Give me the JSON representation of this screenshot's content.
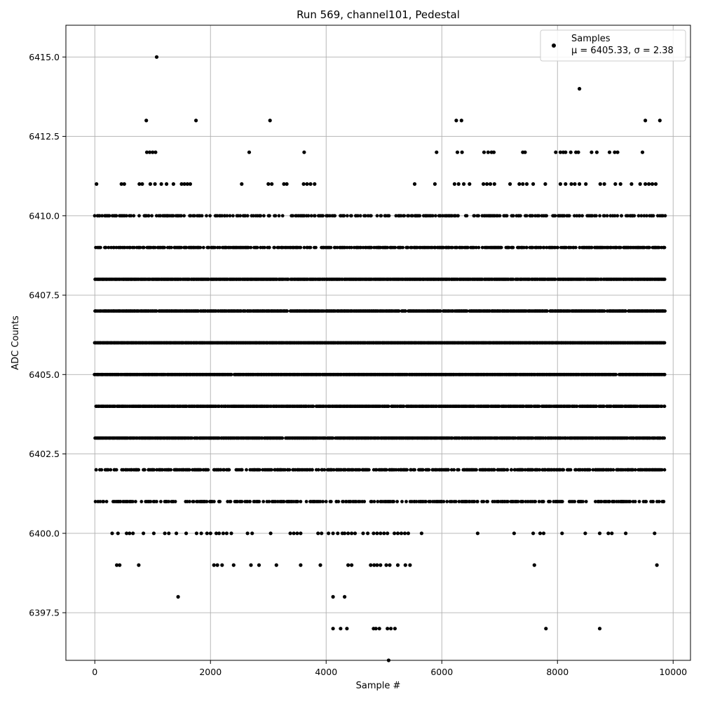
{
  "chart_data": {
    "type": "scatter",
    "title": "Run 569, channel101, Pedestal",
    "xlabel": "Sample #",
    "ylabel": "ADC Counts",
    "xlim": [
      -500,
      10300
    ],
    "ylim": [
      6396.0,
      6416.0
    ],
    "x_ticks": [
      0,
      2000,
      4000,
      6000,
      8000,
      10000
    ],
    "y_ticks": [
      6397.5,
      6400.0,
      6402.5,
      6405.0,
      6407.5,
      6410.0,
      6412.5,
      6415.0
    ],
    "x_tick_labels": [
      "0",
      "2000",
      "4000",
      "6000",
      "8000",
      "10000"
    ],
    "y_tick_labels": [
      "6397.5",
      "6400.0",
      "6402.5",
      "6405.0",
      "6407.5",
      "6410.0",
      "6412.5",
      "6415.0"
    ],
    "grid": true,
    "legend_position": "top-right",
    "marker_color": "#000000",
    "series": [
      {
        "name": "Samples",
        "stats_label": "μ = 6405.33, σ = 2.38",
        "n_samples": 9860,
        "band_levels": [
          6401,
          6402,
          6403,
          6404,
          6405,
          6406,
          6407,
          6408,
          6409,
          6410
        ],
        "sparse_points": [
          {
            "x": 1070,
            "y": 6415
          },
          {
            "x": 8380,
            "y": 6414
          },
          {
            "x": 890,
            "y": 6413
          },
          {
            "x": 1750,
            "y": 6413
          },
          {
            "x": 3030,
            "y": 6413
          },
          {
            "x": 6250,
            "y": 6413
          },
          {
            "x": 6340,
            "y": 6413
          },
          {
            "x": 9520,
            "y": 6413
          },
          {
            "x": 9770,
            "y": 6413
          },
          {
            "x": 900,
            "y": 6412
          },
          {
            "x": 950,
            "y": 6412
          },
          {
            "x": 1000,
            "y": 6412
          },
          {
            "x": 1050,
            "y": 6412
          },
          {
            "x": 2670,
            "y": 6412
          },
          {
            "x": 3620,
            "y": 6412
          },
          {
            "x": 5910,
            "y": 6412
          },
          {
            "x": 6270,
            "y": 6412
          },
          {
            "x": 6350,
            "y": 6412
          },
          {
            "x": 6730,
            "y": 6412
          },
          {
            "x": 6800,
            "y": 6412
          },
          {
            "x": 6860,
            "y": 6412
          },
          {
            "x": 6900,
            "y": 6412
          },
          {
            "x": 7400,
            "y": 6412
          },
          {
            "x": 7440,
            "y": 6412
          },
          {
            "x": 7970,
            "y": 6412
          },
          {
            "x": 8050,
            "y": 6412
          },
          {
            "x": 8100,
            "y": 6412
          },
          {
            "x": 8140,
            "y": 6412
          },
          {
            "x": 8230,
            "y": 6412
          },
          {
            "x": 8320,
            "y": 6412
          },
          {
            "x": 8360,
            "y": 6412
          },
          {
            "x": 8590,
            "y": 6412
          },
          {
            "x": 8680,
            "y": 6412
          },
          {
            "x": 8900,
            "y": 6412
          },
          {
            "x": 8990,
            "y": 6412
          },
          {
            "x": 9040,
            "y": 6412
          },
          {
            "x": 9470,
            "y": 6412
          },
          {
            "x": 30,
            "y": 6411
          },
          {
            "x": 460,
            "y": 6411
          },
          {
            "x": 510,
            "y": 6411
          },
          {
            "x": 770,
            "y": 6411
          },
          {
            "x": 820,
            "y": 6411
          },
          {
            "x": 960,
            "y": 6411
          },
          {
            "x": 1040,
            "y": 6411
          },
          {
            "x": 1150,
            "y": 6411
          },
          {
            "x": 1240,
            "y": 6411
          },
          {
            "x": 1360,
            "y": 6411
          },
          {
            "x": 1500,
            "y": 6411
          },
          {
            "x": 1550,
            "y": 6411
          },
          {
            "x": 1600,
            "y": 6411
          },
          {
            "x": 1650,
            "y": 6411
          },
          {
            "x": 2540,
            "y": 6411
          },
          {
            "x": 3000,
            "y": 6411
          },
          {
            "x": 3060,
            "y": 6411
          },
          {
            "x": 3270,
            "y": 6411
          },
          {
            "x": 3320,
            "y": 6411
          },
          {
            "x": 3610,
            "y": 6411
          },
          {
            "x": 3670,
            "y": 6411
          },
          {
            "x": 3730,
            "y": 6411
          },
          {
            "x": 3800,
            "y": 6411
          },
          {
            "x": 5530,
            "y": 6411
          },
          {
            "x": 5880,
            "y": 6411
          },
          {
            "x": 6220,
            "y": 6411
          },
          {
            "x": 6290,
            "y": 6411
          },
          {
            "x": 6380,
            "y": 6411
          },
          {
            "x": 6480,
            "y": 6411
          },
          {
            "x": 6720,
            "y": 6411
          },
          {
            "x": 6780,
            "y": 6411
          },
          {
            "x": 6840,
            "y": 6411
          },
          {
            "x": 6910,
            "y": 6411
          },
          {
            "x": 7180,
            "y": 6411
          },
          {
            "x": 7340,
            "y": 6411
          },
          {
            "x": 7400,
            "y": 6411
          },
          {
            "x": 7470,
            "y": 6411
          },
          {
            "x": 7580,
            "y": 6411
          },
          {
            "x": 7790,
            "y": 6411
          },
          {
            "x": 8050,
            "y": 6411
          },
          {
            "x": 8140,
            "y": 6411
          },
          {
            "x": 8240,
            "y": 6411
          },
          {
            "x": 8300,
            "y": 6411
          },
          {
            "x": 8380,
            "y": 6411
          },
          {
            "x": 8490,
            "y": 6411
          },
          {
            "x": 8740,
            "y": 6411
          },
          {
            "x": 8810,
            "y": 6411
          },
          {
            "x": 9000,
            "y": 6411
          },
          {
            "x": 9090,
            "y": 6411
          },
          {
            "x": 9280,
            "y": 6411
          },
          {
            "x": 9430,
            "y": 6411
          },
          {
            "x": 9520,
            "y": 6411
          },
          {
            "x": 9580,
            "y": 6411
          },
          {
            "x": 9640,
            "y": 6411
          },
          {
            "x": 9700,
            "y": 6411
          },
          {
            "x": 300,
            "y": 6400
          },
          {
            "x": 400,
            "y": 6400
          },
          {
            "x": 550,
            "y": 6400
          },
          {
            "x": 600,
            "y": 6400
          },
          {
            "x": 660,
            "y": 6400
          },
          {
            "x": 840,
            "y": 6400
          },
          {
            "x": 1020,
            "y": 6400
          },
          {
            "x": 1210,
            "y": 6400
          },
          {
            "x": 1280,
            "y": 6400
          },
          {
            "x": 1410,
            "y": 6400
          },
          {
            "x": 1580,
            "y": 6400
          },
          {
            "x": 1760,
            "y": 6400
          },
          {
            "x": 1840,
            "y": 6400
          },
          {
            "x": 1940,
            "y": 6400
          },
          {
            "x": 2000,
            "y": 6400
          },
          {
            "x": 2100,
            "y": 6400
          },
          {
            "x": 2150,
            "y": 6400
          },
          {
            "x": 2220,
            "y": 6400
          },
          {
            "x": 2280,
            "y": 6400
          },
          {
            "x": 2360,
            "y": 6400
          },
          {
            "x": 2640,
            "y": 6400
          },
          {
            "x": 2720,
            "y": 6400
          },
          {
            "x": 3040,
            "y": 6400
          },
          {
            "x": 3380,
            "y": 6400
          },
          {
            "x": 3440,
            "y": 6400
          },
          {
            "x": 3500,
            "y": 6400
          },
          {
            "x": 3560,
            "y": 6400
          },
          {
            "x": 3860,
            "y": 6400
          },
          {
            "x": 3920,
            "y": 6400
          },
          {
            "x": 4040,
            "y": 6400
          },
          {
            "x": 4120,
            "y": 6400
          },
          {
            "x": 4200,
            "y": 6400
          },
          {
            "x": 4280,
            "y": 6400
          },
          {
            "x": 4320,
            "y": 6400
          },
          {
            "x": 4380,
            "y": 6400
          },
          {
            "x": 4440,
            "y": 6400
          },
          {
            "x": 4500,
            "y": 6400
          },
          {
            "x": 4640,
            "y": 6400
          },
          {
            "x": 4720,
            "y": 6400
          },
          {
            "x": 4820,
            "y": 6400
          },
          {
            "x": 4880,
            "y": 6400
          },
          {
            "x": 4940,
            "y": 6400
          },
          {
            "x": 5000,
            "y": 6400
          },
          {
            "x": 5060,
            "y": 6400
          },
          {
            "x": 5180,
            "y": 6400
          },
          {
            "x": 5240,
            "y": 6400
          },
          {
            "x": 5300,
            "y": 6400
          },
          {
            "x": 5360,
            "y": 6400
          },
          {
            "x": 5420,
            "y": 6400
          },
          {
            "x": 5650,
            "y": 6400
          },
          {
            "x": 6620,
            "y": 6400
          },
          {
            "x": 7250,
            "y": 6400
          },
          {
            "x": 7580,
            "y": 6400
          },
          {
            "x": 7700,
            "y": 6400
          },
          {
            "x": 7760,
            "y": 6400
          },
          {
            "x": 8080,
            "y": 6400
          },
          {
            "x": 8480,
            "y": 6400
          },
          {
            "x": 8730,
            "y": 6400
          },
          {
            "x": 8880,
            "y": 6400
          },
          {
            "x": 8940,
            "y": 6400
          },
          {
            "x": 9180,
            "y": 6400
          },
          {
            "x": 9680,
            "y": 6400
          },
          {
            "x": 380,
            "y": 6399
          },
          {
            "x": 430,
            "y": 6399
          },
          {
            "x": 760,
            "y": 6399
          },
          {
            "x": 2060,
            "y": 6399
          },
          {
            "x": 2120,
            "y": 6399
          },
          {
            "x": 2200,
            "y": 6399
          },
          {
            "x": 2400,
            "y": 6399
          },
          {
            "x": 2700,
            "y": 6399
          },
          {
            "x": 2840,
            "y": 6399
          },
          {
            "x": 3140,
            "y": 6399
          },
          {
            "x": 3560,
            "y": 6399
          },
          {
            "x": 3900,
            "y": 6399
          },
          {
            "x": 4380,
            "y": 6399
          },
          {
            "x": 4440,
            "y": 6399
          },
          {
            "x": 4770,
            "y": 6399
          },
          {
            "x": 4830,
            "y": 6399
          },
          {
            "x": 4880,
            "y": 6399
          },
          {
            "x": 4940,
            "y": 6399
          },
          {
            "x": 5040,
            "y": 6399
          },
          {
            "x": 5100,
            "y": 6399
          },
          {
            "x": 5240,
            "y": 6399
          },
          {
            "x": 5370,
            "y": 6399
          },
          {
            "x": 5450,
            "y": 6399
          },
          {
            "x": 7600,
            "y": 6399
          },
          {
            "x": 9720,
            "y": 6399
          },
          {
            "x": 1440,
            "y": 6398
          },
          {
            "x": 4120,
            "y": 6398
          },
          {
            "x": 4320,
            "y": 6398
          },
          {
            "x": 4120,
            "y": 6397
          },
          {
            "x": 4250,
            "y": 6397
          },
          {
            "x": 4360,
            "y": 6397
          },
          {
            "x": 4820,
            "y": 6397
          },
          {
            "x": 4860,
            "y": 6397
          },
          {
            "x": 4920,
            "y": 6397
          },
          {
            "x": 5060,
            "y": 6397
          },
          {
            "x": 5120,
            "y": 6397
          },
          {
            "x": 5190,
            "y": 6397
          },
          {
            "x": 7800,
            "y": 6397
          },
          {
            "x": 8730,
            "y": 6397
          },
          {
            "x": 5080,
            "y": 6396
          }
        ]
      }
    ]
  }
}
